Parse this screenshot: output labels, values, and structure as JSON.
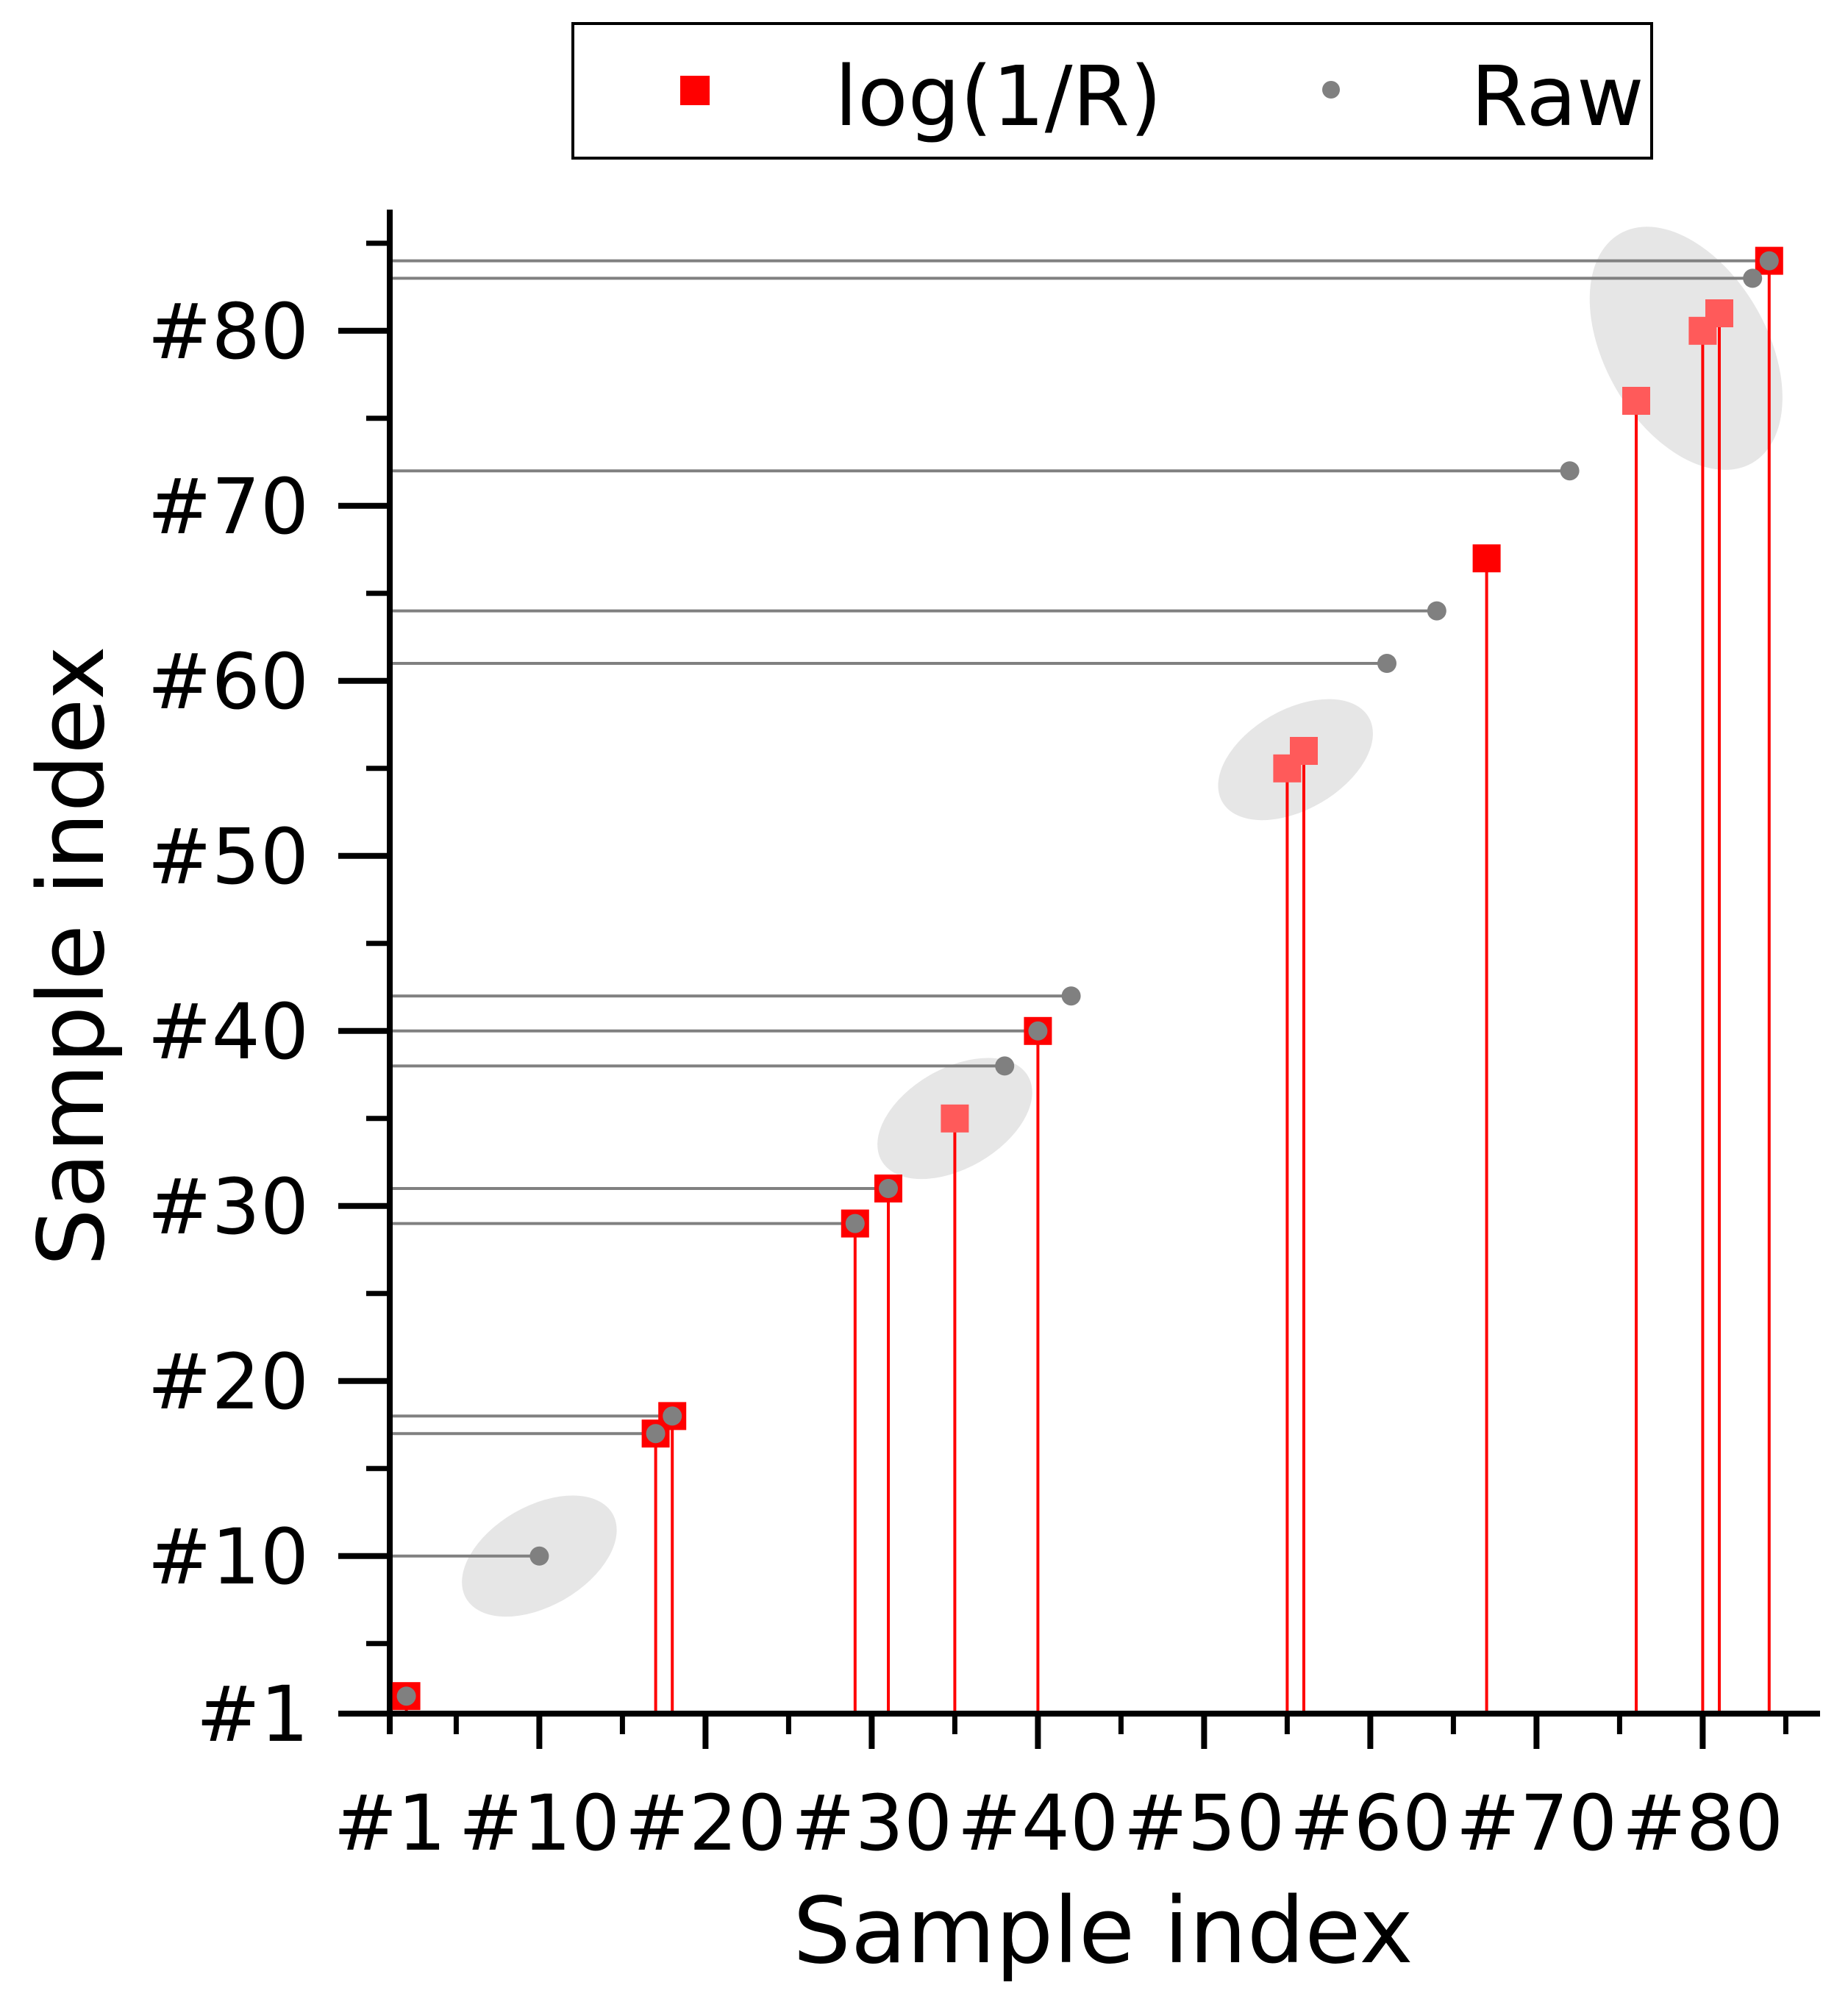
{
  "chart_data": {
    "type": "scatter",
    "title": "",
    "xlabel": "Sample index",
    "ylabel": "Sample index",
    "xlim": [
      1,
      86
    ],
    "ylim": [
      1,
      86
    ],
    "ticks": {
      "values": [
        1,
        10,
        20,
        30,
        40,
        50,
        60,
        70,
        80
      ],
      "labels": [
        "#1",
        "#10",
        "#20",
        "#30",
        "#40",
        "#50",
        "#60",
        "#70",
        "#80"
      ]
    },
    "minor_ticks": [
      5,
      15,
      25,
      35,
      45,
      55,
      65,
      75,
      85
    ],
    "legend": {
      "position": "top",
      "entries": [
        "log(1/R)",
        "Raw"
      ]
    },
    "series": [
      {
        "name": "log(1/R)",
        "marker": "square",
        "color": "#ff0000",
        "stems": "vertical",
        "values": [
          2,
          17,
          18,
          29,
          31,
          35,
          40,
          55,
          56,
          67,
          76,
          80,
          81,
          84
        ]
      },
      {
        "name": "Raw",
        "marker": "circle",
        "color": "#808080",
        "stems": "horizontal",
        "values": [
          2,
          10,
          17,
          18,
          29,
          31,
          38,
          40,
          42,
          61,
          64,
          72,
          83,
          84
        ]
      }
    ],
    "highlighted_log_points": [
      35,
      55,
      56,
      76,
      80,
      81
    ],
    "highlight_regions": [
      {
        "center": [
          10,
          10
        ],
        "label": ""
      },
      {
        "center": [
          35,
          35
        ],
        "label": ""
      },
      {
        "center": [
          55.5,
          55.5
        ],
        "label": ""
      },
      {
        "center": [
          79,
          79
        ],
        "label": ""
      }
    ],
    "colors": {
      "log": "#ff0000",
      "log_light": "#ff5a5a",
      "raw": "#808080",
      "highlight": "#e6e6e6"
    }
  }
}
